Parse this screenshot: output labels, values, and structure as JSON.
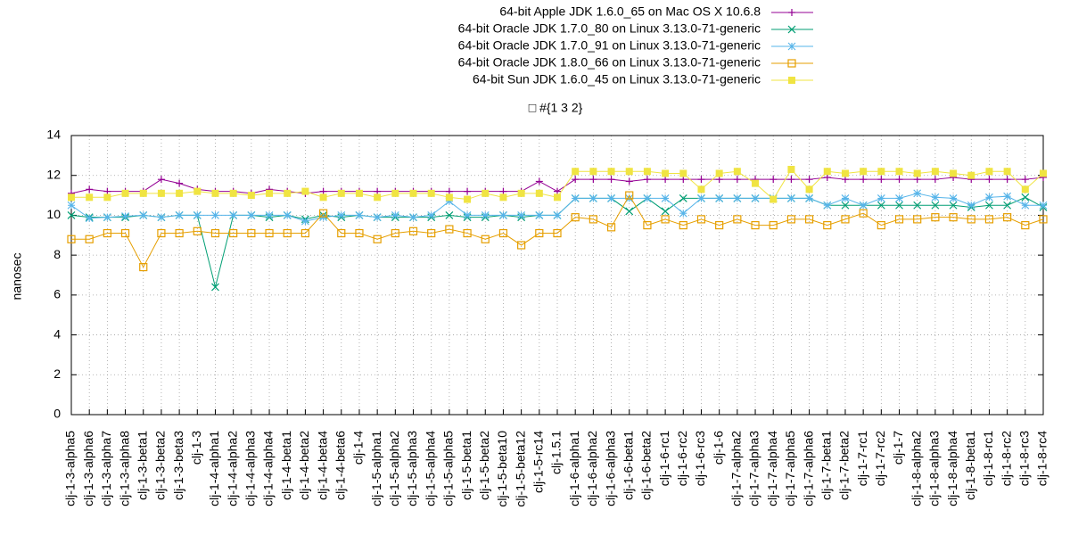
{
  "chart_data": {
    "type": "line",
    "title": "□ #{1 3 2}",
    "y_label": "nanosec",
    "categories": [
      "clj-1-3-alpha5",
      "clj-1-3-alpha6",
      "clj-1-3-alpha7",
      "clj-1-3-alpha8",
      "clj-1-3-beta1",
      "clj-1-3-beta2",
      "clj-1-3-beta3",
      "clj-1-3",
      "clj-1-4-alpha1",
      "clj-1-4-alpha2",
      "clj-1-4-alpha3",
      "clj-1-4-alpha4",
      "clj-1-4-beta1",
      "clj-1-4-beta2",
      "clj-1-4-beta4",
      "clj-1-4-beta6",
      "clj-1-4",
      "clj-1-5-alpha1",
      "clj-1-5-alpha2",
      "clj-1-5-alpha3",
      "clj-1-5-alpha4",
      "clj-1-5-alpha5",
      "clj-1-5-beta1",
      "clj-1-5-beta2",
      "clj-1-5-beta10",
      "clj-1-5-beta12",
      "clj-1-5-rc14",
      "clj-1.5.1",
      "clj-1-6-alpha1",
      "clj-1-6-alpha2",
      "clj-1-6-alpha3",
      "clj-1-6-beta1",
      "clj-1-6-beta2",
      "clj-1-6-rc1",
      "clj-1-6-rc2",
      "clj-1-6-rc3",
      "clj-1-6",
      "clj-1-7-alpha2",
      "clj-1-7-alpha3",
      "clj-1-7-alpha4",
      "clj-1-7-alpha5",
      "clj-1-7-alpha6",
      "clj-1-7-beta1",
      "clj-1-7-beta2",
      "clj-1-7-rc1",
      "clj-1-7-rc2",
      "clj-1-7",
      "clj-1-8-alpha2",
      "clj-1-8-alpha3",
      "clj-1-8-alpha4",
      "clj-1-8-beta1",
      "clj-1-8-rc1",
      "clj-1-8-rc2",
      "clj-1-8-rc3",
      "clj-1-8-rc4"
    ],
    "series": [
      {
        "name": "64-bit Apple JDK 1.6.0_65 on Mac OS X 10.6.8",
        "color": "#940094",
        "marker": "plus",
        "values": [
          11.1,
          11.3,
          11.2,
          11.2,
          11.2,
          11.8,
          11.6,
          11.3,
          11.2,
          11.2,
          11.1,
          11.3,
          11.2,
          11.1,
          11.2,
          11.2,
          11.2,
          11.2,
          11.2,
          11.2,
          11.2,
          11.2,
          11.2,
          11.2,
          11.2,
          11.2,
          11.7,
          11.2,
          11.8,
          11.8,
          11.8,
          11.7,
          11.8,
          11.8,
          11.8,
          11.8,
          11.8,
          11.8,
          11.8,
          11.8,
          11.8,
          11.8,
          11.9,
          11.8,
          11.8,
          11.8,
          11.8,
          11.8,
          11.8,
          11.9,
          11.8,
          11.8,
          11.8,
          11.8,
          11.9
        ]
      },
      {
        "name": "64-bit Oracle JDK 1.7.0_80 on Linux 3.13.0-71-generic",
        "color": "#009e73",
        "marker": "cross",
        "values": [
          10.0,
          9.9,
          9.9,
          9.9,
          10.0,
          9.9,
          10.0,
          10.0,
          6.4,
          10.0,
          10.0,
          9.9,
          10.0,
          9.8,
          10.0,
          9.9,
          10.0,
          9.9,
          9.9,
          9.9,
          9.9,
          10.0,
          9.9,
          9.9,
          10.0,
          9.9,
          10.0,
          10.0,
          10.85,
          10.85,
          10.85,
          10.2,
          10.85,
          10.2,
          10.85,
          10.85,
          10.85,
          10.85,
          10.85,
          10.85,
          10.85,
          10.85,
          10.5,
          10.5,
          10.5,
          10.5,
          10.5,
          10.5,
          10.5,
          10.5,
          10.4,
          10.5,
          10.5,
          10.9,
          10.4
        ]
      },
      {
        "name": "64-bit Oracle JDK 1.7.0_91 on Linux 3.13.0-71-generic",
        "color": "#56b4e9",
        "marker": "star",
        "values": [
          10.5,
          9.85,
          9.9,
          9.95,
          10.0,
          9.9,
          10.0,
          10.0,
          10.0,
          10.0,
          10.0,
          10.0,
          10.0,
          9.7,
          9.9,
          10.0,
          10.0,
          9.9,
          10.0,
          9.9,
          10.0,
          10.7,
          10.0,
          10.0,
          10.0,
          10.0,
          10.0,
          10.0,
          10.85,
          10.85,
          10.85,
          10.85,
          10.85,
          10.85,
          10.1,
          10.85,
          10.85,
          10.85,
          10.85,
          10.85,
          10.85,
          10.85,
          10.5,
          10.85,
          10.5,
          10.85,
          10.85,
          11.1,
          10.9,
          10.85,
          10.5,
          10.9,
          10.95,
          10.5,
          10.5
        ]
      },
      {
        "name": "64-bit Oracle JDK 1.8.0_66 on Linux 3.13.0-71-generic",
        "color": "#e69f00",
        "marker": "square",
        "values": [
          8.8,
          8.8,
          9.1,
          9.1,
          7.4,
          9.1,
          9.1,
          9.2,
          9.1,
          9.1,
          9.1,
          9.1,
          9.1,
          9.1,
          10.1,
          9.1,
          9.1,
          8.8,
          9.1,
          9.2,
          9.1,
          9.3,
          9.1,
          8.8,
          9.1,
          8.5,
          9.1,
          9.1,
          9.9,
          9.8,
          9.4,
          11.0,
          9.5,
          9.8,
          9.5,
          9.8,
          9.5,
          9.8,
          9.5,
          9.5,
          9.8,
          9.8,
          9.5,
          9.8,
          10.1,
          9.5,
          9.8,
          9.8,
          9.9,
          9.9,
          9.8,
          9.8,
          9.9,
          9.5,
          9.8
        ]
      },
      {
        "name": "64-bit Sun JDK 1.6.0_45 on Linux 3.13.0-71-generic",
        "color": "#f0e442",
        "marker": "filled-square",
        "values": [
          10.9,
          10.9,
          10.9,
          11.1,
          11.1,
          11.1,
          11.1,
          11.2,
          11.1,
          11.1,
          11.0,
          11.1,
          11.1,
          11.2,
          10.9,
          11.1,
          11.1,
          10.9,
          11.1,
          11.1,
          11.1,
          10.9,
          10.8,
          11.1,
          10.9,
          11.1,
          11.1,
          10.9,
          12.2,
          12.2,
          12.2,
          12.2,
          12.2,
          12.1,
          12.1,
          11.3,
          12.1,
          12.2,
          11.6,
          10.8,
          12.3,
          11.3,
          12.2,
          12.1,
          12.2,
          12.2,
          12.2,
          12.1,
          12.2,
          12.1,
          12.0,
          12.2,
          12.2,
          11.3,
          12.1
        ]
      }
    ],
    "ylim": [
      0,
      14
    ],
    "yticks": [
      0,
      2,
      4,
      6,
      8,
      10,
      12,
      14
    ],
    "grid": true
  }
}
